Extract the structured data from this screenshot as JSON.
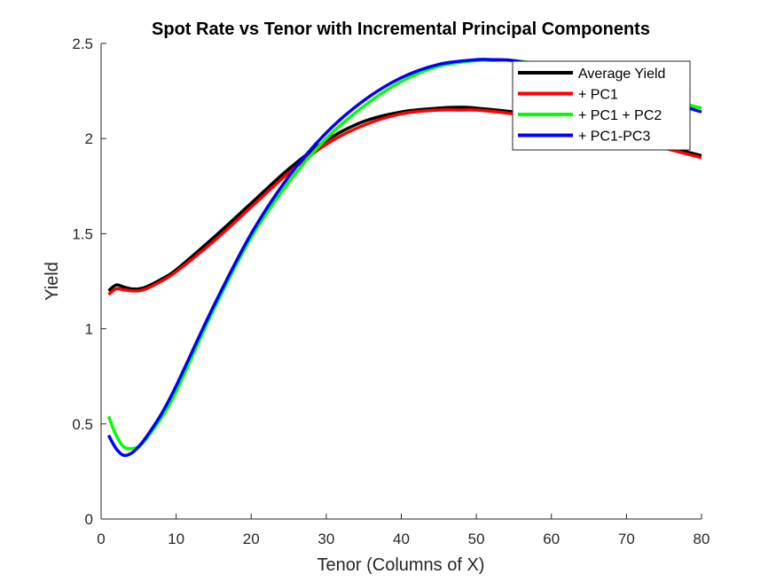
{
  "chart_data": {
    "type": "line",
    "title": "Spot Rate vs Tenor with Incremental Principal Components",
    "xlabel": "Tenor (Columns of X)",
    "ylabel": "Yield",
    "xlim": [
      0,
      80
    ],
    "ylim": [
      0,
      2.5
    ],
    "xticks": [
      0,
      10,
      20,
      30,
      40,
      50,
      60,
      70,
      80
    ],
    "yticks": [
      0,
      0.5,
      1,
      1.5,
      2,
      2.5
    ],
    "xtick_labels": [
      "0",
      "10",
      "20",
      "30",
      "40",
      "50",
      "60",
      "70",
      "80"
    ],
    "ytick_labels": [
      "0",
      "0.5",
      "1",
      "1.5",
      "2",
      "2.5"
    ],
    "grid": false,
    "legend_position": "top-right",
    "series": [
      {
        "name": "Average Yield",
        "color": "#000000",
        "x": [
          1,
          2,
          3,
          4,
          5,
          6,
          8,
          10,
          15,
          20,
          25,
          30,
          35,
          40,
          45,
          48,
          50,
          55,
          60,
          65,
          70,
          75,
          80
        ],
        "y": [
          1.2,
          1.23,
          1.22,
          1.21,
          1.21,
          1.22,
          1.26,
          1.31,
          1.48,
          1.66,
          1.84,
          1.99,
          2.09,
          2.14,
          2.16,
          2.165,
          2.16,
          2.14,
          2.11,
          2.06,
          2.01,
          1.96,
          1.91
        ]
      },
      {
        "name": "+ PC1",
        "color": "#ff0000",
        "x": [
          1,
          2,
          3,
          4,
          5,
          6,
          8,
          10,
          15,
          20,
          25,
          30,
          35,
          40,
          45,
          48,
          50,
          55,
          60,
          65,
          70,
          75,
          80
        ],
        "y": [
          1.18,
          1.21,
          1.205,
          1.2,
          1.2,
          1.21,
          1.25,
          1.3,
          1.46,
          1.64,
          1.82,
          1.97,
          2.07,
          2.13,
          2.15,
          2.15,
          2.15,
          2.13,
          2.1,
          2.05,
          2.0,
          1.95,
          1.9
        ]
      },
      {
        "name": "+ PC1 + PC2",
        "color": "#00ff00",
        "x": [
          1,
          2,
          3,
          4,
          5,
          6,
          8,
          10,
          15,
          20,
          25,
          30,
          35,
          40,
          45,
          50,
          52,
          55,
          60,
          65,
          70,
          75,
          80
        ],
        "y": [
          0.54,
          0.44,
          0.38,
          0.37,
          0.38,
          0.42,
          0.53,
          0.67,
          1.1,
          1.48,
          1.77,
          2.0,
          2.17,
          2.3,
          2.38,
          2.41,
          2.41,
          2.41,
          2.38,
          2.33,
          2.27,
          2.21,
          2.16
        ]
      },
      {
        "name": "+ PC1-PC3",
        "color": "#0000ff",
        "x": [
          1,
          2,
          3,
          4,
          5,
          6,
          8,
          10,
          15,
          20,
          25,
          30,
          35,
          40,
          45,
          50,
          52,
          55,
          60,
          65,
          70,
          75,
          80
        ],
        "y": [
          0.44,
          0.37,
          0.335,
          0.345,
          0.38,
          0.43,
          0.55,
          0.7,
          1.12,
          1.5,
          1.8,
          2.03,
          2.2,
          2.32,
          2.39,
          2.415,
          2.415,
          2.41,
          2.37,
          2.32,
          2.26,
          2.2,
          2.14
        ]
      }
    ]
  }
}
